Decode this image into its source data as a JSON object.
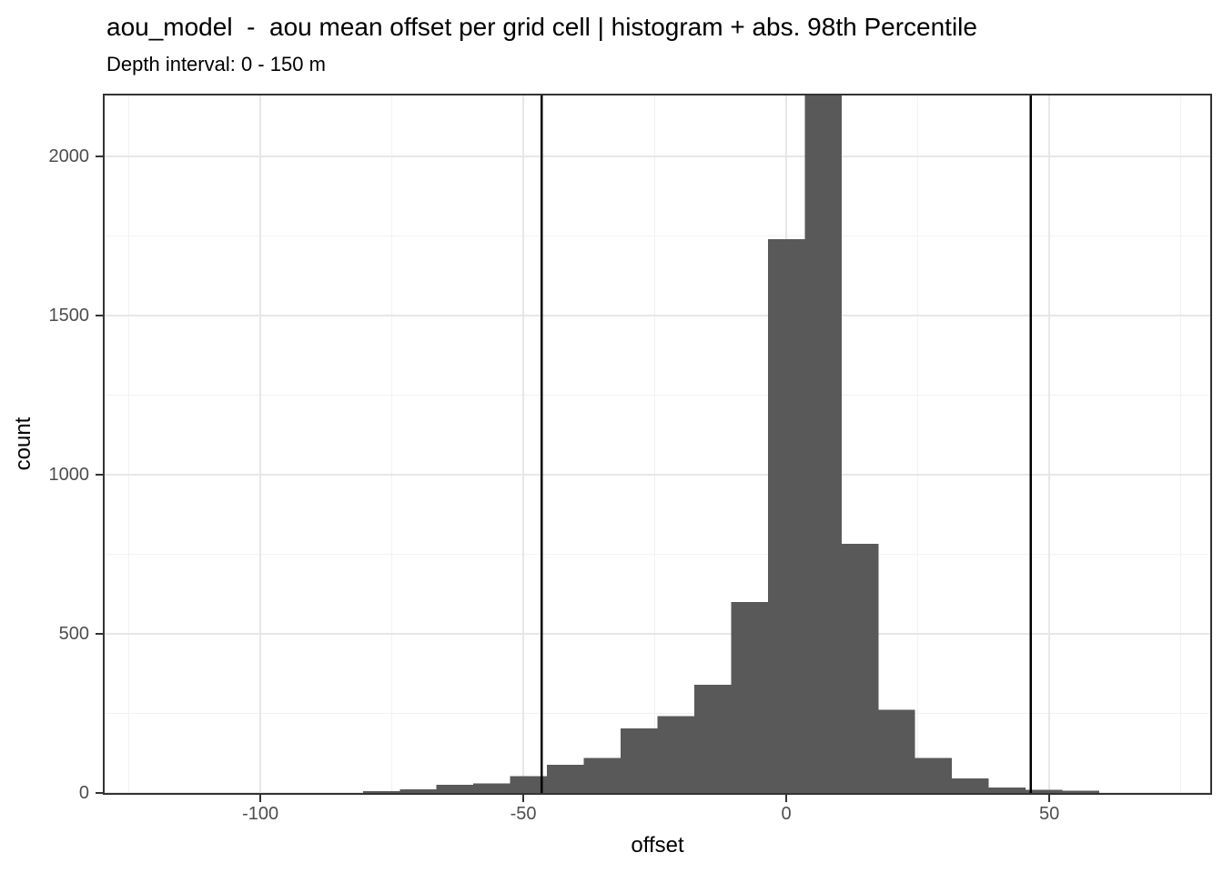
{
  "chart_data": {
    "type": "bar",
    "subtype": "histogram",
    "title": "aou_model  -  aou mean offset per grid cell | histogram + abs. 98th Percentile",
    "subtitle": "Depth interval: 0 - 150 m",
    "xlabel": "offset",
    "ylabel": "count",
    "binwidth": 7,
    "bin_centers": [
      -77,
      -70,
      -63,
      -56,
      -49,
      -42,
      -35,
      -28,
      -21,
      -14,
      -7,
      0,
      7,
      14,
      21,
      28,
      35,
      42,
      49,
      56
    ],
    "counts": [
      5,
      11,
      25,
      30,
      53,
      89,
      110,
      203,
      241,
      340,
      600,
      1740,
      2200,
      782,
      261,
      110,
      46,
      17,
      10,
      7
    ],
    "peak_bar_clipped_at_top": true,
    "vlines": {
      "label": "abs. 98th Percentile",
      "values": [
        -46.5,
        46.5
      ]
    },
    "x_domain": [
      -129.6,
      80.6
    ],
    "y_domain": [
      0,
      2191
    ],
    "x_major_ticks": [
      -100,
      -50,
      0,
      50
    ],
    "x_minor_gridlines": [
      -125,
      -75,
      -25,
      25,
      75
    ],
    "y_major_ticks": [
      0,
      500,
      1000,
      1500,
      2000
    ],
    "y_minor_gridlines": [
      250,
      750,
      1250,
      1750
    ],
    "grid": true,
    "legend": "none",
    "colors": {
      "bar_fill": "#595959",
      "grid_major": "#E7E7E7",
      "grid_minor": "#F2F2F2",
      "panel_border": "#333333",
      "panel_background": "#FFFFFF",
      "axis_text": "#4D4D4D",
      "title_text": "#000000",
      "vline": "#000000",
      "tick_mark": "#333333"
    }
  }
}
